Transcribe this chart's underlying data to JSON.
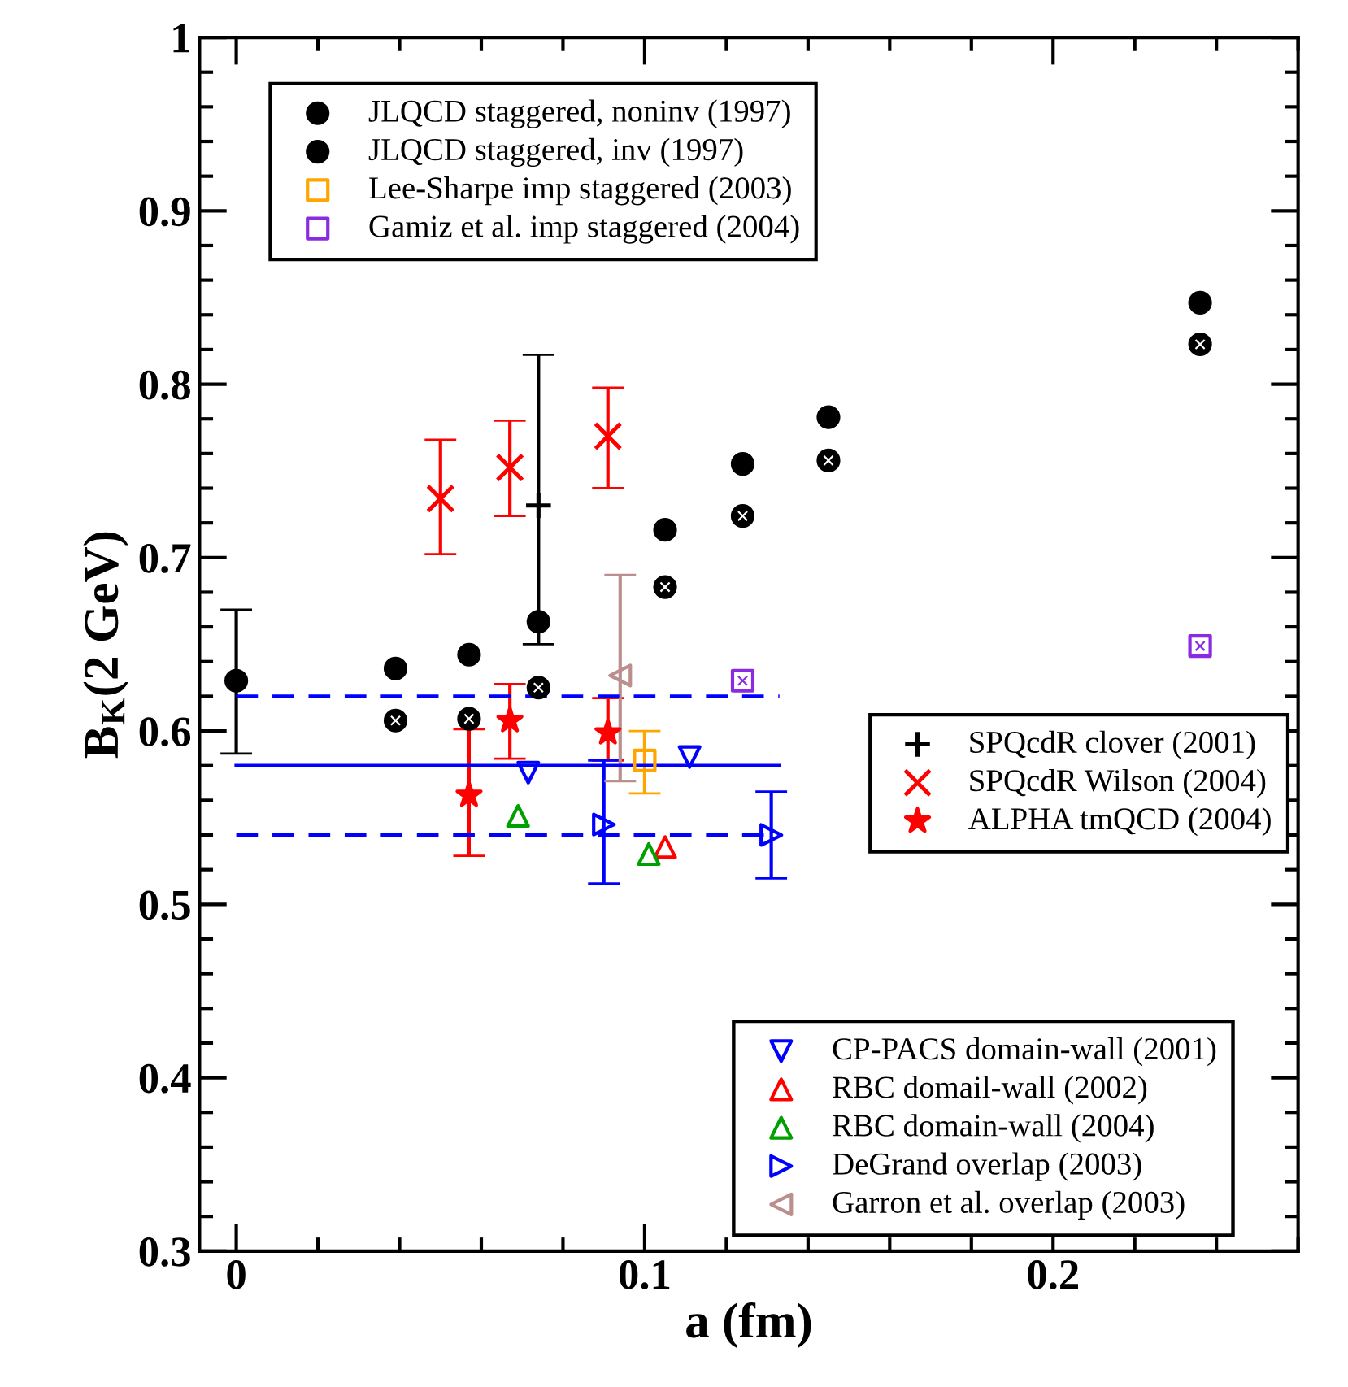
{
  "chart_data": {
    "type": "scatter",
    "xlabel": "a (fm)",
    "ylabel": "B$_{K}$(2 GeV)",
    "xlim": [
      -0.009,
      0.26
    ],
    "xticks": [
      0,
      0.1,
      0.2
    ],
    "ylim": [
      0.3,
      1
    ],
    "yticks": [
      0.3,
      0.4,
      0.5,
      0.6,
      0.7,
      0.8,
      0.9,
      1
    ],
    "grid": false,
    "legend": [
      "top left",
      "top left",
      "top left",
      "top left",
      "right",
      "right",
      "right",
      "bottom right",
      "bottom right",
      "bottom right",
      "bottom right",
      "bottom right"
    ],
    "series": [
      {
        "name": "JLQCD staggered, noninv (1997)",
        "color": "#000000",
        "marker": "circle",
        "x": [
          0,
          0.039,
          0.057,
          0.074,
          0.105,
          0.124,
          0.145,
          0.236
        ],
        "values": [
          0.629,
          0.636,
          0.644,
          0.663,
          0.716,
          0.754,
          0.781,
          0.847
        ],
        "errors": [
          [
            0.587,
            0.67
          ],
          null,
          null,
          null,
          null,
          null,
          null,
          null
        ]
      },
      {
        "name": "JLQCD staggered, inv (1997)",
        "color": "#000000",
        "marker": "circle_cross",
        "x": [
          0.039,
          0.057,
          0.074,
          0.105,
          0.124,
          0.145,
          0.236
        ],
        "values": [
          0.606,
          0.607,
          0.625,
          0.683,
          0.724,
          0.756,
          0.823
        ]
      },
      {
        "name": "Lee-Sharpe imp staggered (2003)",
        "color": "#ffa500",
        "marker": "square",
        "x": [
          0.1
        ],
        "values": [
          0.583
        ],
        "errors": [
          [
            0.564,
            0.6
          ]
        ]
      },
      {
        "name": "Gamiz et al. imp staggered (2004)",
        "color": "#8a2be2",
        "marker": "square_cross",
        "x": [
          0.124,
          0.236
        ],
        "values": [
          0.629,
          0.649
        ]
      },
      {
        "name": "SPQcdR clover (2001)",
        "color": "#000000",
        "marker": "plus",
        "x": [
          0.074
        ],
        "values": [
          0.73
        ],
        "errors": [
          [
            0.65,
            0.817
          ]
        ]
      },
      {
        "name": "SPQcdR Wilson (2004)",
        "color": "#ff0000",
        "marker": "cross",
        "x": [
          0.05,
          0.067,
          0.091
        ],
        "values": [
          0.734,
          0.752,
          0.77
        ],
        "errors": [
          [
            0.702,
            0.768
          ],
          [
            0.724,
            0.779
          ],
          [
            0.74,
            0.798
          ]
        ]
      },
      {
        "name": "ALPHA tmQCD (2004)",
        "color": "#ff0000",
        "marker": "star",
        "x": [
          0.057,
          0.067,
          0.091
        ],
        "values": [
          0.563,
          0.606,
          0.599
        ],
        "errors": [
          [
            0.528,
            0.601
          ],
          [
            0.584,
            0.627
          ],
          [
            0.583,
            0.619
          ]
        ]
      },
      {
        "name": "CP-PACS domain-wall (2001)",
        "color": "#0000ff",
        "marker": "triangle_down",
        "x": [
          0.0715,
          0.111
        ],
        "values": [
          0.576,
          0.585
        ]
      },
      {
        "name": "RBC domail-wall (2002)",
        "color": "#ff0000",
        "marker": "triangle",
        "x": [
          0.105
        ],
        "values": [
          0.533
        ]
      },
      {
        "name": "RBC domain-wall (2004)",
        "color": "#00a000",
        "marker": "triangle",
        "x": [
          0.069,
          0.101
        ],
        "values": [
          0.551,
          0.529
        ]
      },
      {
        "name": "DeGrand overlap (2003)",
        "color": "#0000ff",
        "marker": "triangle_right",
        "x": [
          0.09,
          0.131
        ],
        "values": [
          0.546,
          0.54
        ],
        "errors": [
          [
            0.512,
            0.583
          ],
          [
            0.515,
            0.565
          ]
        ]
      },
      {
        "name": "Garron et al. overlap (2003)",
        "color": "#bc8f8f",
        "marker": "triangle_left",
        "x": [
          0.094
        ],
        "values": [
          0.632
        ],
        "errors": [
          [
            0.571,
            0.69
          ]
        ]
      },
      {
        "type": "line",
        "color": "#0000ff",
        "line_style": "solid",
        "x": [
          0,
          0.133
        ],
        "values": [
          0.58,
          0.58
        ]
      },
      {
        "type": "line",
        "color": "#0000ff",
        "line_style": "dashed",
        "x": [
          0,
          0.133
        ],
        "values": [
          0.62,
          0.62
        ]
      },
      {
        "type": "line",
        "color": "#0000ff",
        "line_style": "dashed",
        "x": [
          0,
          0.133
        ],
        "values": [
          0.54,
          0.54
        ]
      }
    ]
  }
}
